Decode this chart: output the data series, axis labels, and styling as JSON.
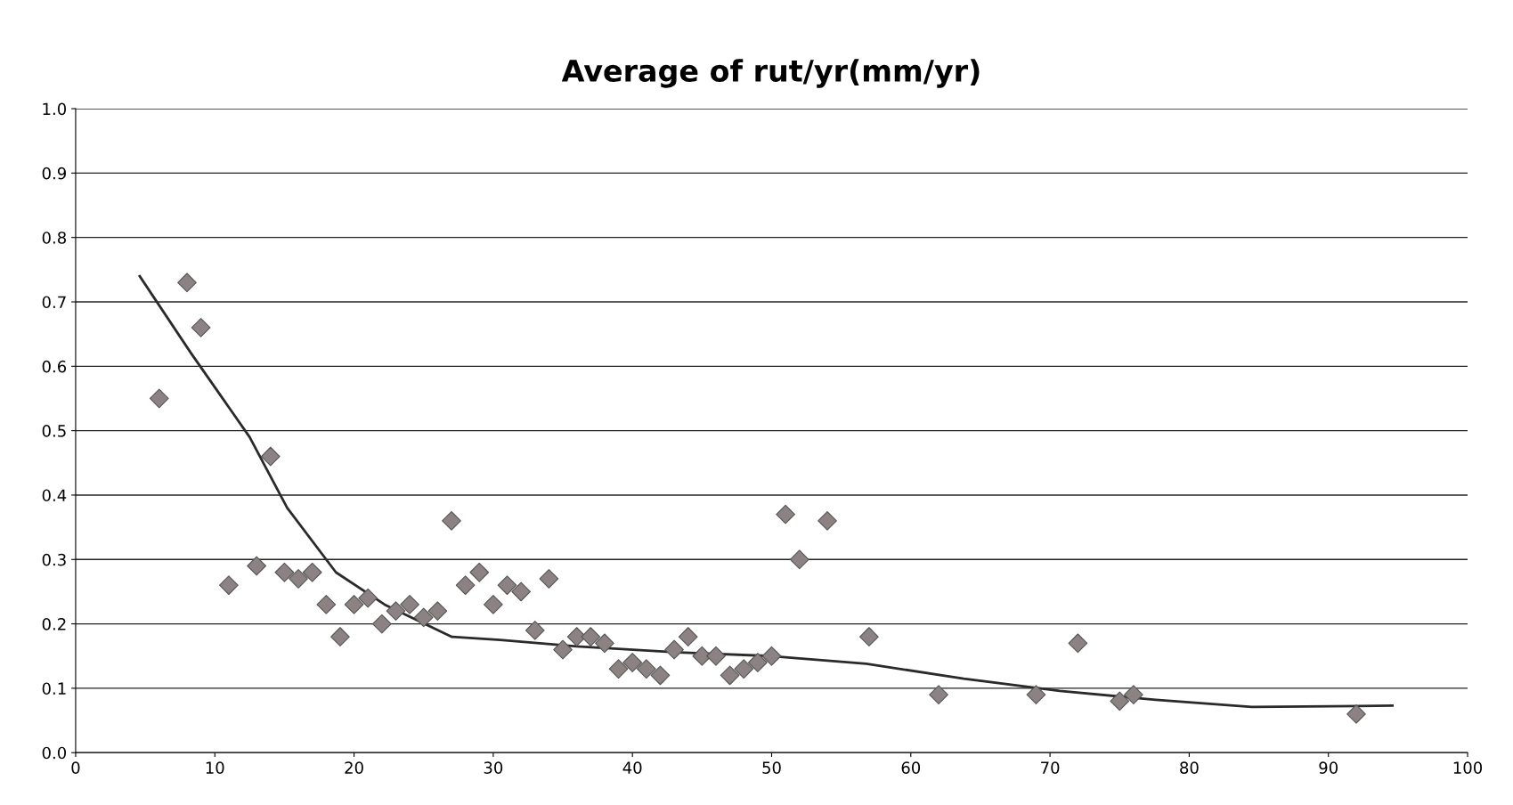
{
  "chart_data": {
    "type": "scatter",
    "title": "Average of rut/yr(mm/yr)",
    "xlim": [
      0,
      100
    ],
    "xticks": [
      0,
      10,
      20,
      30,
      40,
      50,
      60,
      70,
      80,
      90,
      100
    ],
    "ylim": [
      0,
      1.0
    ],
    "yticks": [
      {
        "value": 0,
        "label": "0.0"
      },
      {
        "value": 0.1,
        "label": "0.1"
      },
      {
        "value": 0.2,
        "label": "0.2"
      },
      {
        "value": 0.3,
        "label": "0.3"
      },
      {
        "value": 0.4,
        "label": "0.4"
      },
      {
        "value": 0.5,
        "label": "0.5"
      },
      {
        "value": 0.6,
        "label": "0.6"
      },
      {
        "value": 0.7,
        "label": "0.7"
      },
      {
        "value": 0.8,
        "label": "0.8"
      },
      {
        "value": 0.9,
        "label": "0.9"
      },
      {
        "value": 1.0,
        "label": "1.0"
      }
    ],
    "grid": "y",
    "legend": false,
    "series": [
      {
        "marker": "diamond",
        "color": "#8c8283",
        "x": [
          6,
          8,
          9,
          11,
          13,
          14,
          15,
          16,
          17,
          18,
          19,
          20,
          21,
          22,
          23,
          24,
          25,
          26,
          27,
          28,
          29,
          30,
          31,
          32,
          33,
          34,
          35,
          36,
          37,
          38,
          39,
          40,
          41,
          42,
          43,
          44,
          45,
          46,
          47,
          48,
          49,
          50,
          51,
          52,
          54,
          57,
          62,
          69,
          72,
          75,
          76,
          92
        ],
        "values": [
          0.55,
          0.73,
          0.66,
          0.26,
          0.29,
          0.46,
          0.28,
          0.27,
          0.28,
          0.23,
          0.18,
          0.23,
          0.24,
          0.2,
          0.22,
          0.23,
          0.21,
          0.22,
          0.36,
          0.26,
          0.28,
          0.23,
          0.26,
          0.25,
          0.19,
          0.27,
          0.16,
          0.18,
          0.18,
          0.17,
          0.13,
          0.14,
          0.13,
          0.12,
          0.16,
          0.18,
          0.15,
          0.15,
          0.12,
          0.13,
          0.14,
          0.15,
          0.37,
          0.3,
          0.36,
          0.18,
          0.09,
          0.09,
          0.17,
          0.08,
          0.09,
          0.06
        ]
      },
      {
        "type": "line",
        "marker": "none",
        "line_style": "solid",
        "color": "#2a2a2a",
        "x": [
          4.6,
          8.3,
          12.5,
          15.2,
          18.7,
          22.2,
          27,
          30.5,
          36,
          43,
          50,
          56.8,
          63.8,
          70.7,
          77.6,
          84.5,
          94.6
        ],
        "values": [
          0.74,
          0.62,
          0.49,
          0.38,
          0.28,
          0.23,
          0.18,
          0.175,
          0.165,
          0.156,
          0.15,
          0.138,
          0.115,
          0.096,
          0.082,
          0.071,
          0.073
        ]
      }
    ]
  }
}
